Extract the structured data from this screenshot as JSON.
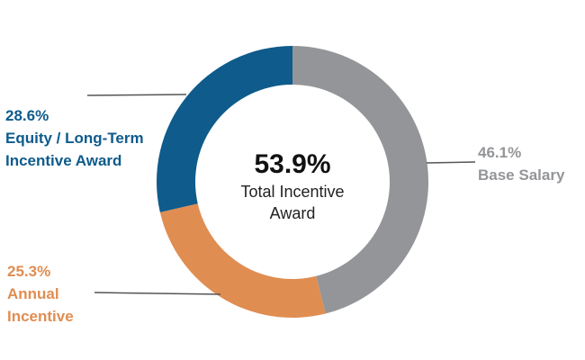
{
  "chart_data": {
    "type": "pie",
    "donut": true,
    "slices": [
      {
        "value": 46.1,
        "percent_label": "46.1%",
        "label_lines": [
          "Base Salary"
        ],
        "color": "#939598"
      },
      {
        "value": 25.3,
        "percent_label": "25.3%",
        "label_lines": [
          "Annual",
          "Incentive"
        ],
        "color": "#e08d51"
      },
      {
        "value": 28.6,
        "percent_label": "28.6%",
        "label_lines": [
          "Equity / Long-Term",
          "Incentive Award"
        ],
        "color": "#0e5b8c"
      }
    ],
    "center": {
      "value": "53.9%",
      "caption_lines": [
        "Total Incentive",
        "Award"
      ]
    },
    "leader_line_color": "#555555"
  }
}
